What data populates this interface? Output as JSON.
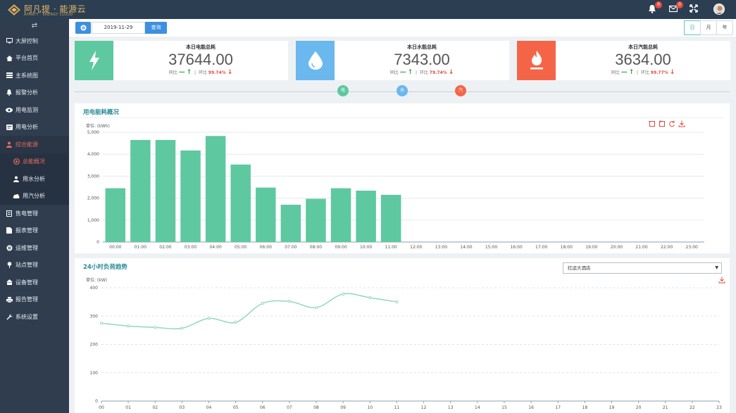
{
  "brand": {
    "title": "阿凡提 · 能源云",
    "subtitle": "AFANTY · ENERGY CLOUD"
  },
  "header": {
    "bell_badge": "0",
    "mail_badge": "0"
  },
  "sidebar": {
    "items": [
      {
        "label": "大屏控制",
        "icon": "monitor-icon"
      },
      {
        "label": "平台首页",
        "icon": "home-icon"
      },
      {
        "label": "主系统图",
        "icon": "list-icon"
      },
      {
        "label": "报警分析",
        "icon": "bell-icon"
      },
      {
        "label": "用电监测",
        "icon": "eye-icon"
      },
      {
        "label": "用电分析",
        "icon": "card-icon"
      },
      {
        "label": "综合能源",
        "icon": "energy-icon"
      },
      {
        "label": "总能概况",
        "icon": "target-icon"
      },
      {
        "label": "用水分析",
        "icon": "drop-icon"
      },
      {
        "label": "用汽分析",
        "icon": "cloud-icon"
      },
      {
        "label": "售电管理",
        "icon": "bill-icon"
      },
      {
        "label": "报表管理",
        "icon": "report-icon"
      },
      {
        "label": "运维管理",
        "icon": "gear-icon"
      },
      {
        "label": "站点管理",
        "icon": "pin-icon"
      },
      {
        "label": "设备管理",
        "icon": "device-icon"
      },
      {
        "label": "报告管理",
        "icon": "printer-icon"
      },
      {
        "label": "系统设置",
        "icon": "wrench-icon"
      }
    ]
  },
  "toolbar": {
    "date": "2019-11-29",
    "query_label": "查询",
    "tabs": [
      "日",
      "月",
      "年"
    ]
  },
  "cards": [
    {
      "title": "本日电能总耗",
      "value": "37644.00",
      "yoy_label": "同比",
      "yoy_value": "—",
      "mom_label": "环比",
      "mom_value": "99.74%",
      "color": "#5ec8a0",
      "icon": "lightning-icon"
    },
    {
      "title": "本日水能总耗",
      "value": "7343.00",
      "yoy_label": "同比",
      "yoy_value": "—",
      "mom_label": "环比",
      "mom_value": "79.74%",
      "color": "#6ab8ee",
      "icon": "water-drop-icon"
    },
    {
      "title": "本日汽能总耗",
      "value": "3634.00",
      "yoy_label": "同比",
      "yoy_value": "—",
      "mom_label": "环比",
      "mom_value": "99.77%",
      "color": "#f46548",
      "icon": "flame-icon"
    }
  ],
  "timeline": {
    "nodes": [
      {
        "label": "电",
        "color": "#5ec8a0"
      },
      {
        "label": "水",
        "color": "#6ab8ee"
      },
      {
        "label": "汽",
        "color": "#f46548"
      }
    ]
  },
  "electric_panel": {
    "title": "用电能耗概况",
    "unit": "单位:   (kWh)"
  },
  "load_panel": {
    "title": "24小时负荷趋势",
    "unit": "单位:   (kW)",
    "select_value": "红运大酒店"
  },
  "chart_data": [
    {
      "type": "bar",
      "categories": [
        "00:00",
        "01:00",
        "02:00",
        "03:00",
        "04:00",
        "05:00",
        "06:00",
        "07:00",
        "08:00",
        "09:00",
        "10:00",
        "11:00",
        "12:00",
        "13:00",
        "14:00",
        "15:00",
        "16:00",
        "17:00",
        "18:00",
        "19:00",
        "20:00",
        "21:00",
        "22:00",
        "23:00"
      ],
      "values": [
        2450,
        4650,
        4650,
        4170,
        4830,
        3530,
        2480,
        1700,
        1970,
        2450,
        2340,
        2150,
        null,
        null,
        null,
        null,
        null,
        null,
        null,
        null,
        null,
        null,
        null,
        null
      ],
      "ylim": [
        0,
        5000
      ],
      "yticks": [
        "0",
        "1,000",
        "2,000",
        "3,000",
        "4,000",
        "5,000"
      ],
      "grid": true,
      "color": "#5ec8a0"
    },
    {
      "type": "line",
      "categories": [
        "00",
        "01",
        "02",
        "03",
        "04",
        "05",
        "06",
        "07",
        "08",
        "09",
        "10",
        "11",
        "12",
        "13",
        "14",
        "15",
        "16",
        "17",
        "18",
        "19",
        "20",
        "21",
        "22",
        "23"
      ],
      "values": [
        275,
        265,
        260,
        257,
        292,
        278,
        345,
        352,
        330,
        378,
        365,
        350,
        null,
        null,
        null,
        null,
        null,
        null,
        null,
        null,
        null,
        null,
        null,
        null
      ],
      "ylim": [
        0,
        400
      ],
      "yticks": [
        "0",
        "100",
        "200",
        "300",
        "400"
      ],
      "grid": true,
      "color": "#8fd8c0"
    }
  ]
}
